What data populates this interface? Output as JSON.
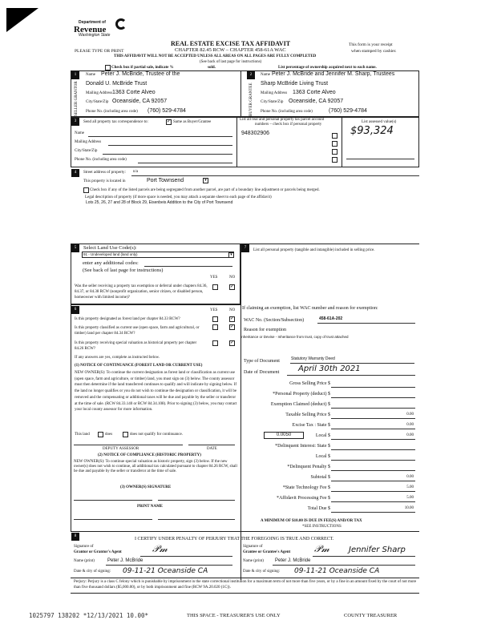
{
  "header": {
    "dept": "Department of",
    "revenue": "Revenue",
    "state": "Washington State",
    "title": "REAL ESTATE EXCISE TAX AFFIDAVIT",
    "chapter": "CHAPTER 82.45 RCW – CHAPTER 458-61A WAC",
    "please": "PLEASE TYPE OR PRINT",
    "receipt1": "This form is your receipt",
    "receipt2": "when stamped by cashier.",
    "warning": "THIS AFFIDAVIT WILL NOT BE ACCEPTED UNLESS ALL AREAS ON ALL PAGES ARE FULLY COMPLETED",
    "see_back": "(See back of last page for instructions)",
    "partial": "Check box if partial sale, indicate %",
    "sold": "sold.",
    "pct": "List percentage of ownership acquired next to each name."
  },
  "seller": {
    "side": "SELLER GRANTOR",
    "name_label": "Name",
    "name1": "Peter J. McBride, Trustee of the",
    "name2": "Donald U. McBride Trust",
    "addr_label": "Mailing Address",
    "addr": "1363 Corte Alveo",
    "city_label": "City/State/Zip",
    "city": "Oceanside, CA  92057",
    "phone_label": "Phone No. (including area code)",
    "phone": "(760) 529-4784"
  },
  "buyer": {
    "side": "BUYER GRANTEE",
    "name_label": "Name",
    "name1": "Peter J. McBride and Jennifer M. Sharp, Trustees",
    "name2": "Sharp McBride Living Trust",
    "addr_label": "Mailing Address",
    "addr": "1363 Corte Alveo",
    "city_label": "City/State/Zip",
    "city": "Oceanside, CA  92057",
    "phone_label": "Phone No. (including area code)",
    "phone": "(760) 529-4784"
  },
  "s3": {
    "send": "Send all property tax correspondence to:",
    "same": "Same as Buyer/Grantee",
    "name": "Name",
    "addr": "Mailing Address",
    "city": "City/State/Zip",
    "phone": "Phone No. (including area code)",
    "parcel_hdr1": "List all real and personal property tax parcel account",
    "parcel_hdr2": "numbers – check box if personal property",
    "parcel": "948302906",
    "assessed_hdr": "List assessed value(s)",
    "assessed": "$93,324"
  },
  "s4": {
    "street_label": "Street address of property:",
    "street": "n/a",
    "located": "This property is located in",
    "city": "Port Townsend",
    "segregated": "Check box if any of the listed parcels are being segregated from another parcel, are part of a boundary line adjustment or parcels being merged.",
    "legal_label": "Legal description of property (if more space is needed, you may attach a separate sheet to each page of the affidavit)",
    "legal": "Lots 25, 26, 27 and 28 of Block 29, Eisenbeis Addition to the City of Port Townsend"
  },
  "s5": {
    "label": "Select Land Use Code(s):",
    "code": "91 - Undeveloped land (land only)",
    "additional": "enter any additional codes:",
    "see_back": "(See back of last page for instructions)",
    "yes": "YES",
    "no": "NO",
    "q1": "Was the seller receiving a property tax exemption or deferral under chapters 84.36, 84.37, or 84.38 RCW (nonprofit organization, senior citizen, or disabled person, homeowner with limited income)?"
  },
  "s6": {
    "q1": "Is this property designated as forest land per chapter 84.33 RCW?",
    "q2": "Is this property classified as current use (open space, farm and agricultural, or timber) land per chapter 84.34 RCW?",
    "q3": "Is this property receiving special valuation as historical property per chapter 84.26 RCW?",
    "if_yes": "If any answers are yes, complete as instructed below.",
    "n1_title": "(1) NOTICE OF CONTINUANCE (FOREST LAND OR CURRENT USE)",
    "n1_body": "NEW OWNER(S): To continue the current designation as forest land or classification as current use (open space, farm and agriculture, or timber) land, you must sign on (3) below. The county assessor must then determine if the land transferred continues to qualify and will indicate by signing below. If the land no longer qualifies or you do not wish to continue the designation or classification, it will be removed and the compensating or additional taxes will be due and payable by the seller or transferor at the time of sale. (RCW 84.33.140 or RCW 84.34.108). Prior to signing (3) below, you may contact your local county assessor for more information.",
    "this_land": "This land",
    "does": "does",
    "does_not": "does not  qualify for continuance.",
    "deputy": "DEPUTY ASSESSOR",
    "date": "DATE",
    "n2_title": "(2) NOTICE OF COMPLIANCE (HISTORIC PROPERTY)",
    "n2_body": "NEW OWNER(S): To continue special valuation as historic property, sign (3) below. If the new owner(s) does not wish to continue, all additional tax calculated pursuant to chapter 84.26 RCW, shall be due and payable by the seller or transferor at the time of sale.",
    "n3_title": "(3) OWNER(S) SIGNATURE",
    "print_name": "PRINT NAME"
  },
  "s7": {
    "label": "List all personal property (tangible and intangible) included in selling price.",
    "exempt": "If claiming an exemption, list WAC number and reason for exemption:",
    "wac_label": "WAC No. (Section/Subsection)",
    "wac": "458-61A-202",
    "reason_label": "Reason for exemption",
    "reason": "Inheritance or Devise - Inheritance from trust, copy of trust attached",
    "doctype_label": "Type of Document",
    "doctype": "Statutory Warranty Deed",
    "date_label": "Date of Document",
    "date": "April 30th 2021",
    "fees": [
      {
        "label": "Gross Selling Price $",
        "value": ""
      },
      {
        "label": "*Personal Property (deduct) $",
        "value": ""
      },
      {
        "label": "Exemption Claimed (deduct) $",
        "value": ""
      },
      {
        "label": "Taxable Selling Price $",
        "value": "0.00"
      },
      {
        "label": "Excise Tax : State $",
        "value": "0.00"
      },
      {
        "label": "Local $",
        "value": "0.00"
      },
      {
        "label": "*Delinquent Interest: State $",
        "value": ""
      },
      {
        "label": "Local $",
        "value": ""
      },
      {
        "label": "*Delinquent Penalty $",
        "value": ""
      },
      {
        "label": "Subtotal $",
        "value": "0.00"
      },
      {
        "label": "*State Technology Fee $",
        "value": "5.00"
      },
      {
        "label": "*Affidavit Processing Fee $",
        "value": "5.00"
      },
      {
        "label": "Total Due $",
        "value": "10.00"
      }
    ],
    "rate": "0.0050",
    "minimum": "A MINIMUM OF $10.00 IS DUE IN FEE(S) AND/OR TAX",
    "see_instr": "*SEE INSTRUCTIONS"
  },
  "s8": {
    "certify": "I CERTIFY UNDER PENALTY OF PERJURY THAT THE FOREGOING IS TRUE AND CORRECT.",
    "sig_of": "Signature of",
    "grantor": "Grantor or Grantor's Agent",
    "grantee": "Grantee or Grantee's Agent",
    "name_print": "Name (print)",
    "grantor_name": "Peter J. McBride",
    "grantee_name": "Peter J. McBride",
    "date_city": "Date & city of signing:",
    "grantor_date": "09-11-21  Oceanside CA",
    "grantee_date": "09-11-21  Oceanside CA",
    "grantee_sig2": "Jennifer Sharp",
    "perjury": "Perjury: Perjury is a class C felony which is punishable by imprisonment in the state correctional institution for a maximum term of not more than five years, or by a fine in an amount fixed by the court of not more than five thousand dollars ($5,000.00), or by both imprisonment and fine (RCW 9A.20.020 (1C))."
  },
  "footer": {
    "stamp": "1025797 138202 *12/13/2021 10.00*",
    "treasurer_use": "THIS SPACE - TREASURER'S USE ONLY",
    "county": "COUNTY TREASURER"
  }
}
